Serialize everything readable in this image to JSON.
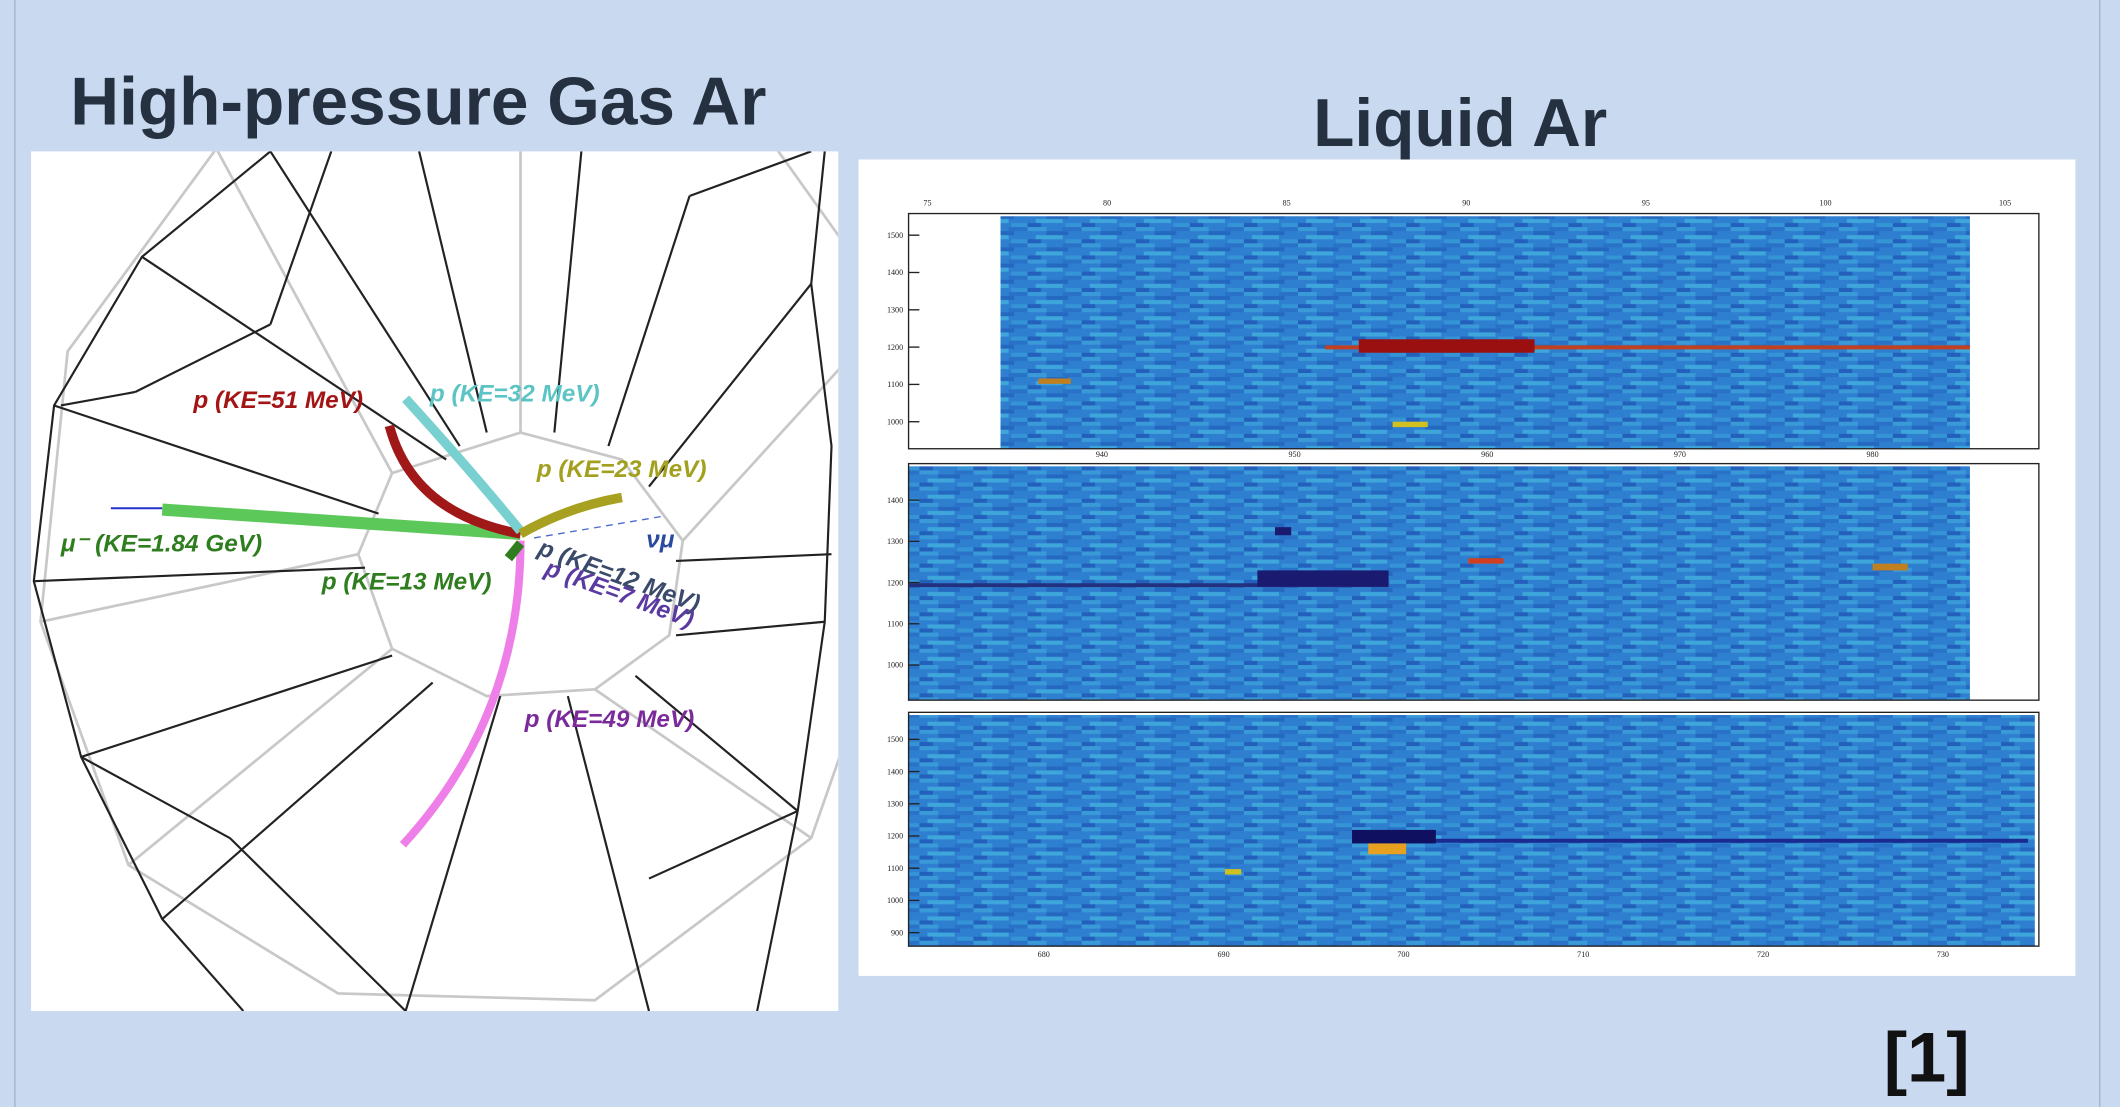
{
  "gas_ar": {
    "title": "High-pressure Gas Ar",
    "labels": {
      "p51": "p (KE=51 MeV)",
      "p32": "p (KE=32 MeV)",
      "p23": "p (KE=23 MeV)",
      "muon": "μ⁻ (KE=1.84 GeV)",
      "p13": "p (KE=13 MeV)",
      "p12": "p (KE=12 MeV)",
      "p7": "p (KE=7 MeV)",
      "numu": "νμ",
      "p49": "p (KE=49 MeV)"
    }
  },
  "liquid_ar": {
    "title": "Liquid Ar",
    "panels": [
      {
        "x_top": [
          "75",
          "80",
          "85",
          "90",
          "95",
          "100",
          "105"
        ],
        "x_bottom": [
          "940",
          "950",
          "960",
          "970",
          "980"
        ],
        "y": [
          "1500",
          "1400",
          "1300",
          "1200",
          "1100",
          "1000"
        ]
      },
      {
        "y": [
          "1400",
          "1300",
          "1200",
          "1100",
          "1000"
        ]
      },
      {
        "x_bottom": [
          "680",
          "690",
          "700",
          "710",
          "720",
          "730"
        ],
        "y": [
          "1500",
          "1400",
          "1300",
          "1200",
          "1100",
          "1000",
          "900"
        ]
      }
    ]
  },
  "reference": "[1]"
}
